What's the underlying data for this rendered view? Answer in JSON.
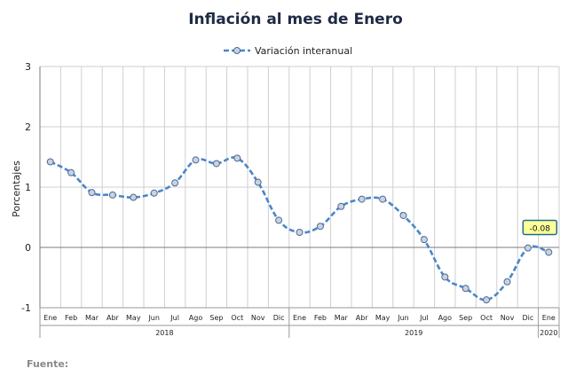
{
  "chart_data": {
    "type": "line",
    "title": "Inflación al mes de Enero",
    "ylabel": "Porcentajes",
    "xlabel": "",
    "ylim": [
      -1,
      3
    ],
    "yticks": [
      "3",
      "2",
      "1",
      "0",
      "-1"
    ],
    "grid": true,
    "legend_position": "top-center",
    "source_label": "Fuente:",
    "categories": [
      "Ene",
      "Feb",
      "Mar",
      "Abr",
      "May",
      "Jun",
      "Jul",
      "Ago",
      "Sep",
      "Oct",
      "Nov",
      "Dic",
      "Ene",
      "Feb",
      "Mar",
      "Abr",
      "May",
      "Jun",
      "Jul",
      "Ago",
      "Sep",
      "Oct",
      "Nov",
      "Dic",
      "Ene"
    ],
    "years": [
      {
        "label": "2018",
        "start": 0,
        "end": 11
      },
      {
        "label": "2019",
        "start": 12,
        "end": 23
      },
      {
        "label": "2020",
        "start": 24,
        "end": 24
      }
    ],
    "series": [
      {
        "name": "Variación interanual",
        "color": "#4a86c8",
        "marker_fill": "#c9d2e3",
        "values": [
          1.42,
          1.24,
          0.91,
          0.87,
          0.83,
          0.9,
          1.07,
          1.45,
          1.39,
          1.48,
          1.08,
          0.45,
          0.25,
          0.35,
          0.68,
          0.8,
          0.8,
          0.53,
          0.13,
          -0.49,
          -0.68,
          -0.87,
          -0.57,
          -0.01,
          -0.08
        ]
      }
    ],
    "annotations": [
      {
        "index": 24,
        "text": "-0.08",
        "bg": "#ffff99",
        "border": "#1f6d8f"
      }
    ]
  }
}
